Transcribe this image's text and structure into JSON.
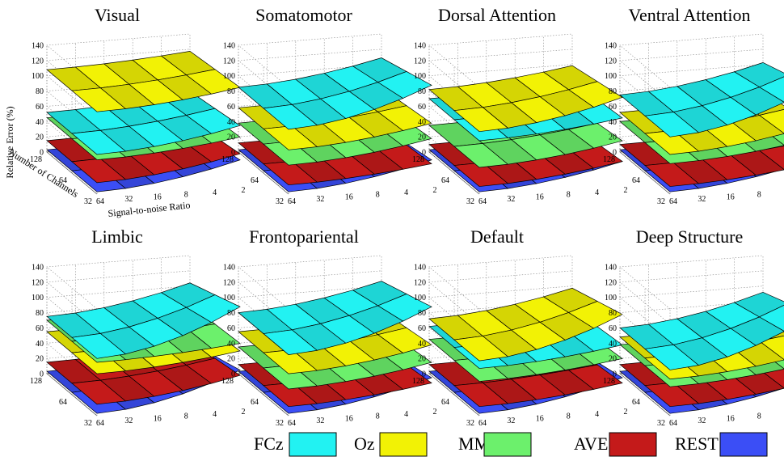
{
  "figure": {
    "legend": [
      {
        "label": "FCz",
        "color": "#22F2F2"
      },
      {
        "label": "Oz",
        "color": "#F2F205"
      },
      {
        "label": "MM",
        "color": "#6CF06C"
      },
      {
        "label": "AVE",
        "color": "#C41A1A"
      },
      {
        "label": "REST",
        "color": "#3B4EF6"
      }
    ]
  },
  "chart_data": [
    {
      "type": "surface3d",
      "title": "Visual",
      "ylabel": "Relative Error (%)",
      "xlabel": "Signal-to-noise Ratio",
      "depth_label": "Number of Channels",
      "zlim": [
        0,
        140
      ],
      "z_ticks": [
        "0",
        "20",
        "40",
        "60",
        "80",
        "100",
        "120",
        "140"
      ],
      "snr_ticks": [
        "64",
        "32",
        "16",
        "8",
        "4",
        "2"
      ],
      "channel_ticks": [
        "128",
        "64",
        "32"
      ],
      "series": [
        {
          "name": "REST",
          "low": 3,
          "high": 30
        },
        {
          "name": "AVE",
          "low": 15,
          "high": 38
        },
        {
          "name": "MM",
          "low": 45,
          "high": 60
        },
        {
          "name": "FCz",
          "low": 52,
          "high": 75
        },
        {
          "name": "Oz",
          "low": 108,
          "high": 125
        }
      ]
    },
    {
      "type": "surface3d",
      "title": "Somatomotor",
      "zlim": [
        0,
        140
      ],
      "z_ticks": [
        "0",
        "20",
        "40",
        "60",
        "80",
        "100",
        "120",
        "140"
      ],
      "snr_ticks": [
        "64",
        "32",
        "16",
        "8",
        "4",
        "2"
      ],
      "channel_ticks": [
        "128",
        "64",
        "32"
      ],
      "series": [
        {
          "name": "REST",
          "low": 3,
          "high": 30
        },
        {
          "name": "AVE",
          "low": 12,
          "high": 25
        },
        {
          "name": "MM",
          "low": 38,
          "high": 58
        },
        {
          "name": "Oz",
          "low": 58,
          "high": 78
        },
        {
          "name": "FCz",
          "low": 85,
          "high": 128
        }
      ]
    },
    {
      "type": "surface3d",
      "title": "Dorsal Attention",
      "zlim": [
        0,
        140
      ],
      "z_ticks": [
        "0",
        "20",
        "40",
        "60",
        "80",
        "100",
        "120",
        "140"
      ],
      "snr_ticks": [
        "64",
        "32",
        "16",
        "8",
        "4",
        "2"
      ],
      "channel_ticks": [
        "128",
        "64",
        "32"
      ],
      "series": [
        {
          "name": "REST",
          "low": 3,
          "high": 28
        },
        {
          "name": "AVE",
          "low": 10,
          "high": 28
        },
        {
          "name": "MM",
          "low": 35,
          "high": 55
        },
        {
          "name": "FCz",
          "low": 70,
          "high": 85
        },
        {
          "name": "Oz",
          "low": 82,
          "high": 112
        }
      ]
    },
    {
      "type": "surface3d",
      "title": "Ventral Attention",
      "zlim": [
        0,
        140
      ],
      "z_ticks": [
        "0",
        "20",
        "40",
        "60",
        "80",
        "100",
        "120",
        "140"
      ],
      "snr_ticks": [
        "64",
        "32",
        "16",
        "8",
        "4",
        "2"
      ],
      "channel_ticks": [
        "128",
        "64",
        "32"
      ],
      "series": [
        {
          "name": "REST",
          "low": 3,
          "high": 30
        },
        {
          "name": "AVE",
          "low": 10,
          "high": 25
        },
        {
          "name": "MM",
          "low": 40,
          "high": 58
        },
        {
          "name": "Oz",
          "low": 52,
          "high": 75
        },
        {
          "name": "FCz",
          "low": 75,
          "high": 125
        }
      ]
    },
    {
      "type": "surface3d",
      "title": "Limbic",
      "zlim": [
        0,
        140
      ],
      "z_ticks": [
        "0",
        "20",
        "40",
        "60",
        "80",
        "100",
        "120",
        "140"
      ],
      "snr_ticks": [
        "64",
        "32",
        "16",
        "8",
        "4",
        "2"
      ],
      "channel_ticks": [
        "128",
        "64",
        "32"
      ],
      "series": [
        {
          "name": "REST",
          "low": 3,
          "high": 45
        },
        {
          "name": "AVE",
          "low": 15,
          "high": 38
        },
        {
          "name": "Oz",
          "low": 55,
          "high": 70
        },
        {
          "name": "MM",
          "low": 70,
          "high": 80
        },
        {
          "name": "FCz",
          "low": 75,
          "high": 128
        }
      ]
    },
    {
      "type": "surface3d",
      "title": "Frontopariental",
      "zlim": [
        0,
        140
      ],
      "z_ticks": [
        "0",
        "20",
        "40",
        "60",
        "80",
        "100",
        "120",
        "140"
      ],
      "snr_ticks": [
        "64",
        "32",
        "16",
        "8",
        "4",
        "2"
      ],
      "channel_ticks": [
        "128",
        "64",
        "32"
      ],
      "series": [
        {
          "name": "REST",
          "low": 3,
          "high": 35
        },
        {
          "name": "AVE",
          "low": 12,
          "high": 28
        },
        {
          "name": "MM",
          "low": 35,
          "high": 55
        },
        {
          "name": "Oz",
          "low": 55,
          "high": 78
        },
        {
          "name": "FCz",
          "low": 80,
          "high": 128
        }
      ]
    },
    {
      "type": "surface3d",
      "title": "Default",
      "zlim": [
        0,
        140
      ],
      "z_ticks": [
        "0",
        "20",
        "40",
        "60",
        "80",
        "100",
        "120",
        "140"
      ],
      "snr_ticks": [
        "64",
        "32",
        "16",
        "8",
        "4",
        "2"
      ],
      "channel_ticks": [
        "128",
        "64",
        "32"
      ],
      "series": [
        {
          "name": "REST",
          "low": 3,
          "high": 35
        },
        {
          "name": "AVE",
          "low": 12,
          "high": 28
        },
        {
          "name": "MM",
          "low": 45,
          "high": 60
        },
        {
          "name": "FCz",
          "low": 62,
          "high": 78
        },
        {
          "name": "Oz",
          "low": 72,
          "high": 118
        }
      ]
    },
    {
      "type": "surface3d",
      "title": "Deep Structure",
      "zlim": [
        0,
        140
      ],
      "z_ticks": [
        "0",
        "20",
        "40",
        "60",
        "80",
        "100",
        "120",
        "140"
      ],
      "snr_ticks": [
        "64",
        "32",
        "16",
        "8",
        "4",
        "2"
      ],
      "channel_ticks": [
        "128",
        "64",
        "32"
      ],
      "series": [
        {
          "name": "REST",
          "low": 3,
          "high": 35
        },
        {
          "name": "AVE",
          "low": 12,
          "high": 30
        },
        {
          "name": "MM",
          "low": 38,
          "high": 55
        },
        {
          "name": "Oz",
          "low": 48,
          "high": 68
        },
        {
          "name": "FCz",
          "low": 60,
          "high": 118
        }
      ]
    }
  ]
}
